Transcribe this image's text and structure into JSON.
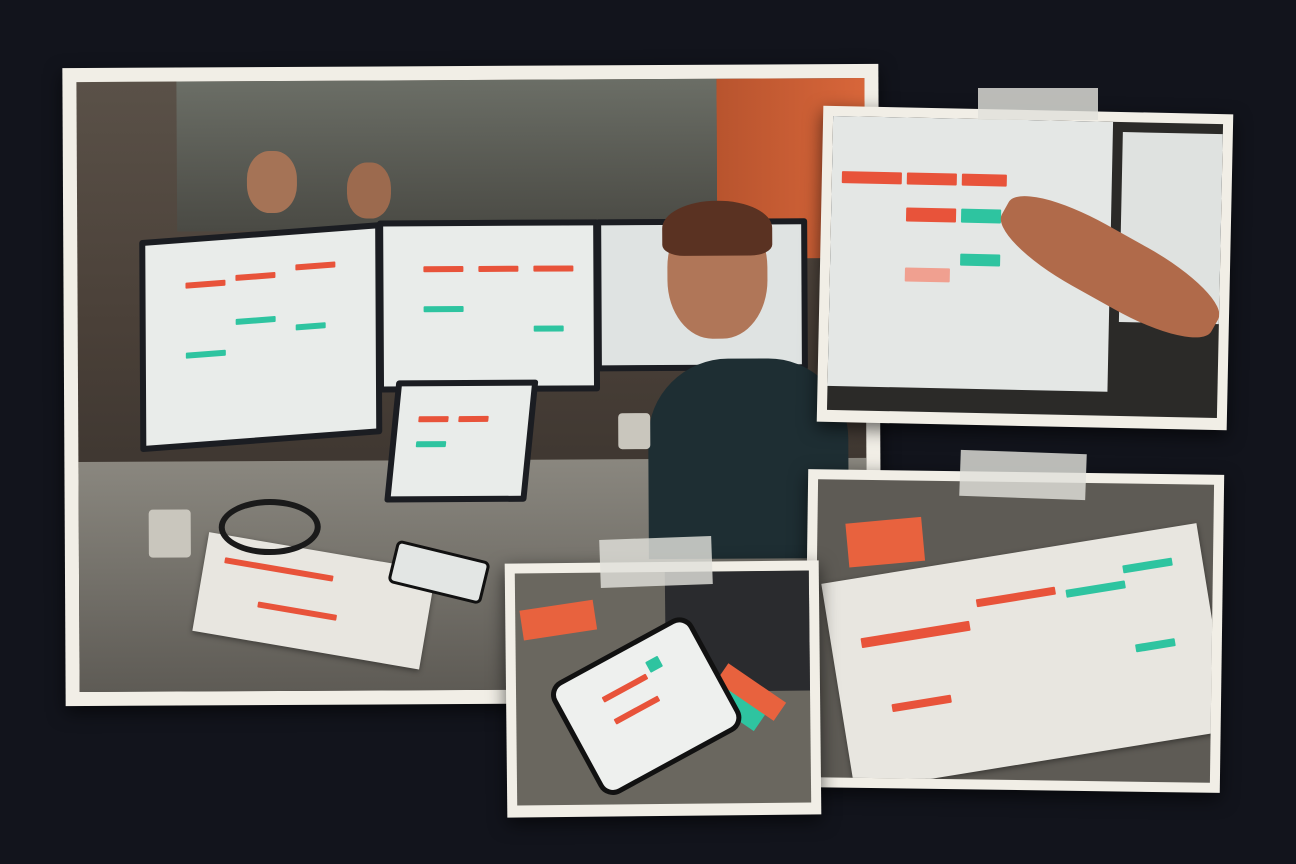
{
  "colors": {
    "background": "#12141c",
    "frame": "#f1eee6",
    "accent_red": "#e8533a",
    "accent_teal": "#2ec4a0",
    "desk": "#77746c",
    "wall_orange": "#c8562e"
  },
  "photos": [
    {
      "subject": "office-desk-with-monitors"
    },
    {
      "subject": "hand-pointing-at-monitor"
    },
    {
      "subject": "smartphone-on-desk"
    },
    {
      "subject": "printed-reports-with-sticky-notes"
    }
  ]
}
